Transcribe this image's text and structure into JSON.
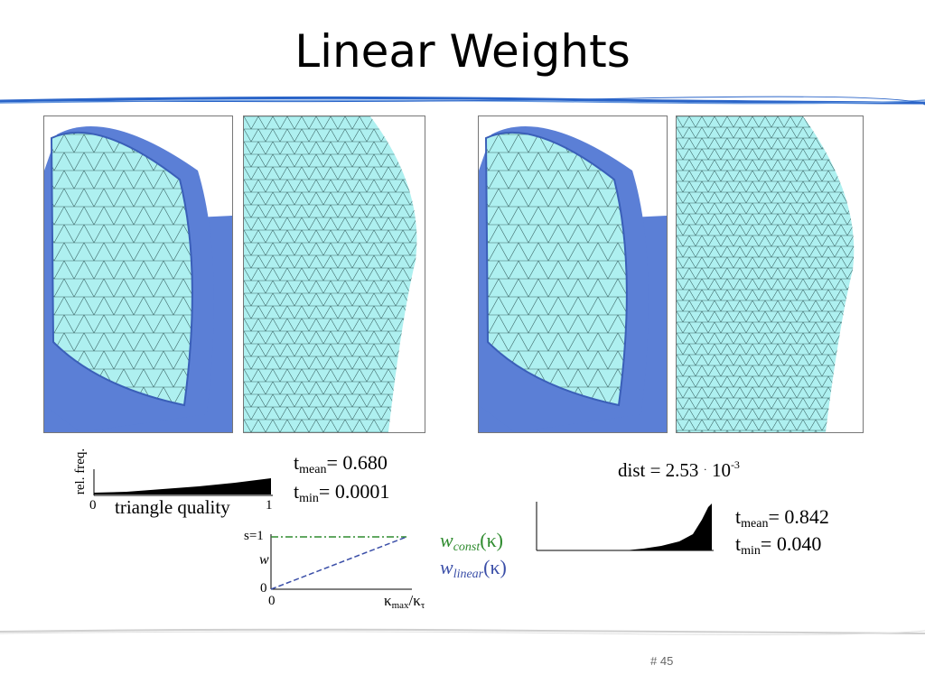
{
  "slide": {
    "title": "Linear Weights",
    "page_number": "# 45"
  },
  "left_histogram": {
    "y_label": "rel. freq.",
    "x_min": "0",
    "x_max": "1",
    "x_label": "triangle quality",
    "t_mean": {
      "sym": "t",
      "sub": "mean",
      "eq": "= 0.680"
    },
    "t_min": {
      "sym": "t",
      "sub": "min",
      "eq": "= 0.0001"
    }
  },
  "right_histogram": {
    "dist": {
      "text": "dist = 2.53",
      "dot": "·",
      "base": "10",
      "exp": "-3"
    },
    "t_mean": {
      "sym": "t",
      "sub": "mean",
      "eq": "= 0.842"
    },
    "t_min": {
      "sym": "t",
      "sub": "min",
      "eq": "= 0.040"
    }
  },
  "weight_plot": {
    "y_top": "s=1",
    "y_axis": "w",
    "y_zero": "0",
    "x_zero": "0",
    "x_label": {
      "k1": "κ",
      "s1": "max",
      "slash": "/",
      "k2": "κ",
      "s2": "τ"
    },
    "legend": [
      {
        "w": "w",
        "sub": "const",
        "arg": "(κ)",
        "color": "#2e8b2e"
      },
      {
        "w": "w",
        "sub": "linear",
        "arg": "(κ)",
        "color": "#3b4fa8"
      }
    ]
  },
  "colors": {
    "mesh_fill": "#aef0f0",
    "mesh_blue": "#5b7fd6",
    "rule_blue": "#2a64c8"
  }
}
